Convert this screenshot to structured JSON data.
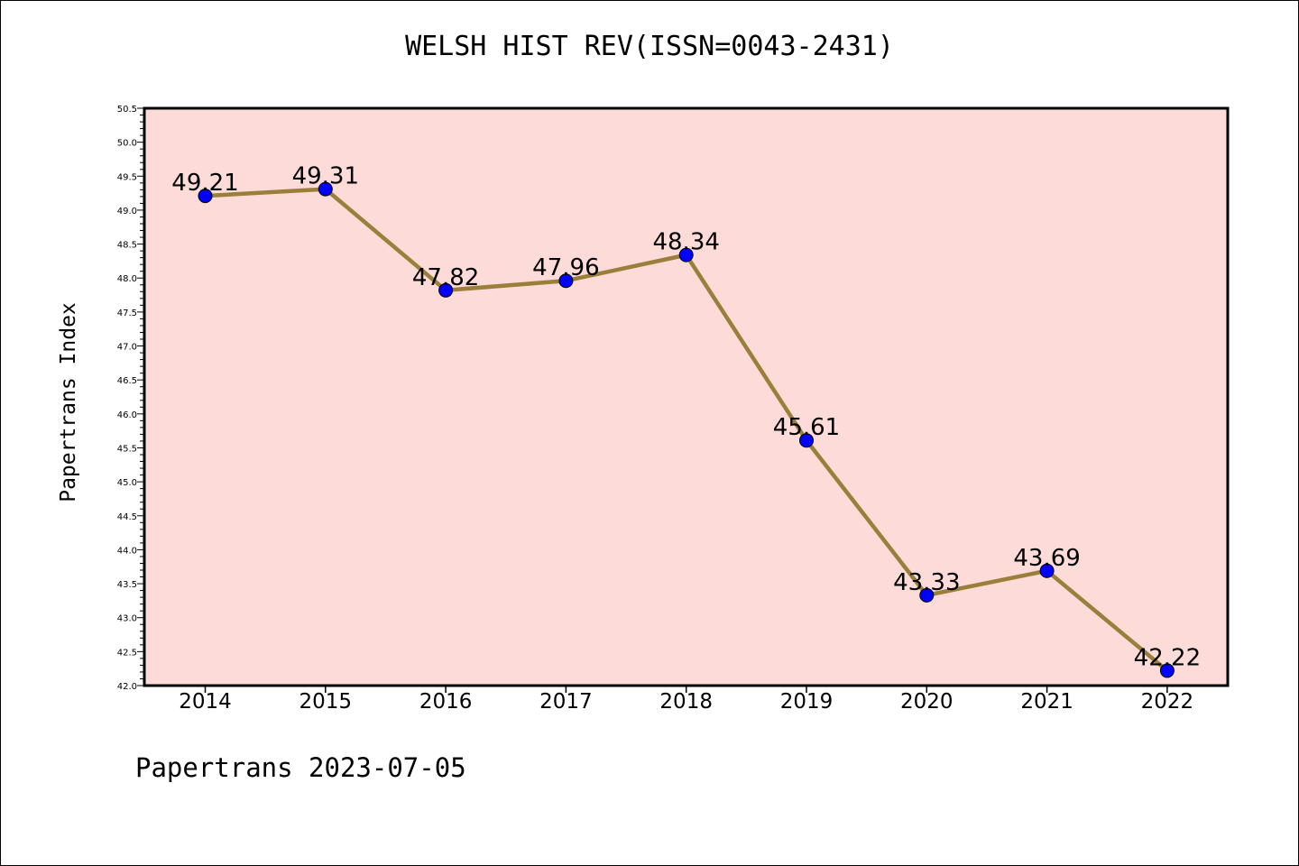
{
  "chart_data": {
    "type": "line",
    "title": "WELSH HIST REV(ISSN=0043-2431)",
    "xlabel": "",
    "ylabel": "Papertrans Index",
    "categories": [
      "2014",
      "2015",
      "2016",
      "2017",
      "2018",
      "2019",
      "2020",
      "2021",
      "2022"
    ],
    "series": [
      {
        "values": [
          49.21,
          49.31,
          47.82,
          47.96,
          48.34,
          45.61,
          43.33,
          43.69,
          42.22
        ],
        "labels": [
          "49.21",
          "49.31",
          "47.82",
          "47.96",
          "48.34",
          "45.61",
          "43.33",
          "43.69",
          "42.22"
        ]
      }
    ],
    "ylim": [
      42.0,
      50.5
    ],
    "yticks": [
      "42.0",
      "42.5",
      "43.0",
      "43.5",
      "44.0",
      "44.5",
      "45.0",
      "45.5",
      "46.0",
      "46.5",
      "47.0",
      "47.5",
      "48.0",
      "48.5",
      "49.0",
      "49.5",
      "50.0",
      "50.5"
    ],
    "grid": false,
    "colors": {
      "background": "#fddbd8",
      "line": "#9a7f3a",
      "marker": "#0000ff"
    }
  },
  "footer": "Papertrans 2023-07-05"
}
